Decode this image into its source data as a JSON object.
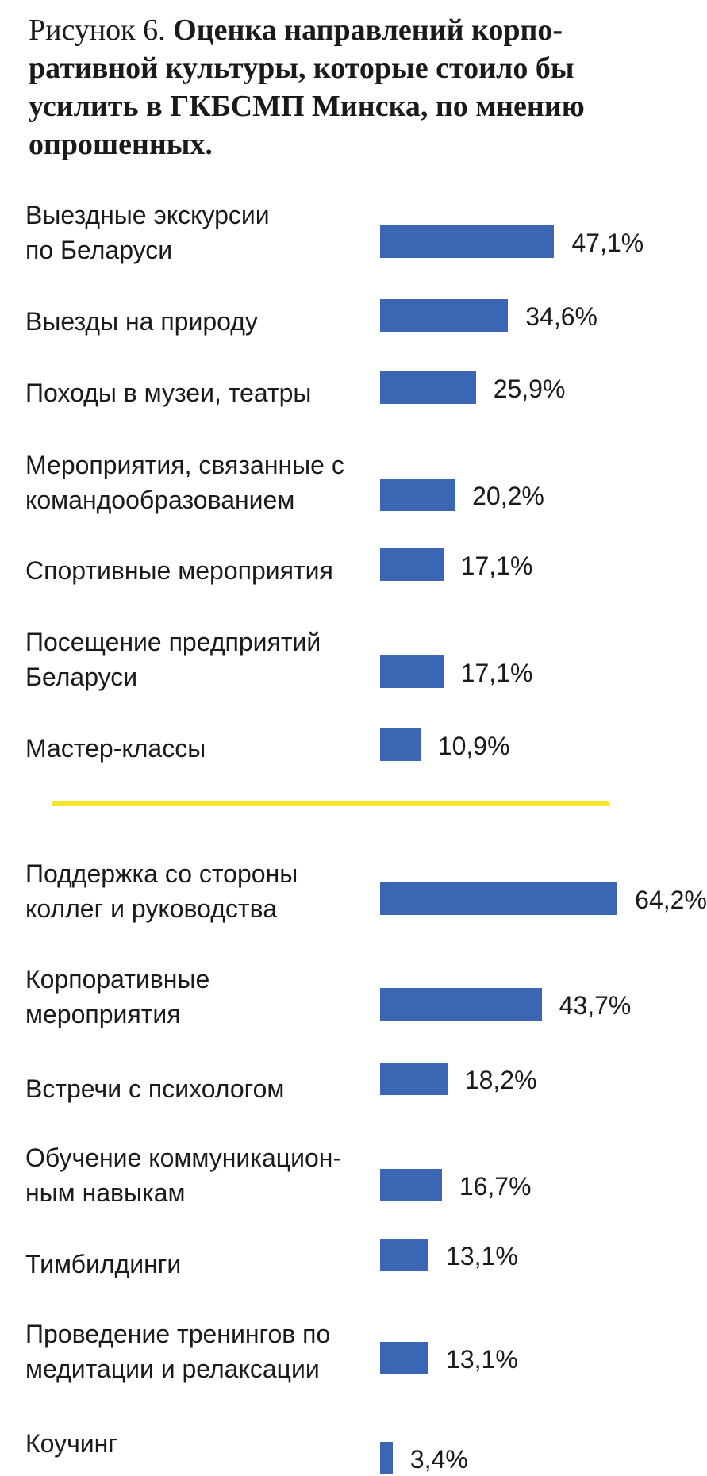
{
  "title": {
    "prefix": "Рисунок 6.",
    "main": "Оценка направлений корпо-ративной культуры, которые стоило бы усилить в ГКБСМП Минска, по мнению опрошенных."
  },
  "colors": {
    "bar": "#3a66b4",
    "separator": "#f3e62b"
  },
  "chart_data": [
    {
      "type": "bar",
      "orientation": "horizontal",
      "categories": [
        "Выездные экскурсии\nпо Беларуси",
        "Выезды на природу",
        "Походы в музеи, театры",
        "Мероприятия, связанные с\nкомандообразованием",
        "Спортивные мероприятия",
        "Посещение предприятий\nБеларуси",
        "Мастер-классы"
      ],
      "values": [
        47.1,
        34.6,
        25.9,
        20.2,
        17.1,
        17.1,
        10.9
      ],
      "labels": [
        "47,1%",
        "34,6%",
        "25,9%",
        "20,2%",
        "17,1%",
        "17,1%",
        "10,9%"
      ]
    },
    {
      "type": "bar",
      "orientation": "horizontal",
      "categories": [
        "Поддержка со стороны\nколлег и руководства",
        "Корпоративные\nмероприятия",
        "Встречи с психологом",
        "Обучение коммуникацион-\nным навыкам",
        "Тимбилдинги",
        "Проведение тренингов по\nмедитации и релаксации",
        "Коучинг"
      ],
      "values": [
        64.2,
        43.7,
        18.2,
        16.7,
        13.1,
        13.1,
        3.4
      ],
      "labels": [
        "64,2%",
        "43,7%",
        "18,2%",
        "16,7%",
        "13,1%",
        "13,1%",
        "3,4%"
      ]
    }
  ]
}
